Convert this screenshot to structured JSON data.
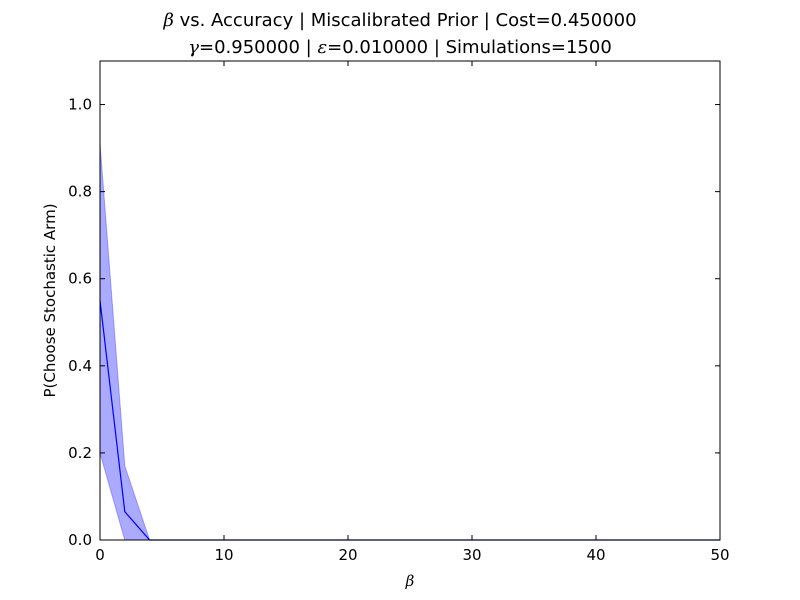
{
  "chart_data": {
    "type": "line",
    "title": {
      "line1": {
        "symbol": "β",
        "text": " vs. Accuracy | Miscalibrated Prior | Cost=0.450000"
      },
      "line2": {
        "gamma_symbol": "γ",
        "gamma_text": "=0.950000 | ",
        "eps_symbol": "ε",
        "eps_text": "=0.010000 | Simulations=1500"
      }
    },
    "xlabel": "β",
    "ylabel": "P(Choose Stochastic Arm)",
    "xlim": [
      0,
      50
    ],
    "ylim": [
      0,
      1.1
    ],
    "xticks": [
      0,
      10,
      20,
      30,
      40,
      50
    ],
    "xtick_labels": [
      "0",
      "10",
      "20",
      "30",
      "40",
      "50"
    ],
    "yticks": [
      0,
      0.2,
      0.4,
      0.6,
      0.8,
      1.0
    ],
    "ytick_labels": [
      "0.0",
      "0.2",
      "0.4",
      "0.6",
      "0.8",
      "1.0"
    ],
    "grid": false,
    "series": [
      {
        "x": [
          0,
          2,
          4,
          6,
          8,
          10,
          12,
          14,
          16,
          18,
          20,
          22,
          24,
          26,
          28,
          30,
          32,
          34,
          36,
          38,
          40,
          42,
          44,
          46,
          48,
          50
        ],
        "y": [
          0.55,
          0.065,
          0,
          0,
          0,
          0,
          0,
          0,
          0,
          0,
          0,
          0,
          0,
          0,
          0,
          0,
          0,
          0,
          0,
          0,
          0,
          0,
          0,
          0,
          0,
          0
        ],
        "y_upper": [
          0.91,
          0.17,
          0,
          0,
          0,
          0,
          0,
          0,
          0,
          0,
          0,
          0,
          0,
          0,
          0,
          0,
          0,
          0,
          0,
          0,
          0,
          0,
          0,
          0,
          0,
          0
        ],
        "y_lower": [
          0.2,
          0,
          0,
          0,
          0,
          0,
          0,
          0,
          0,
          0,
          0,
          0,
          0,
          0,
          0,
          0,
          0,
          0,
          0,
          0,
          0,
          0,
          0,
          0,
          0,
          0
        ]
      }
    ],
    "colors": {
      "line": "#0000ff",
      "band": "#5555ff",
      "axes": "#000000"
    }
  }
}
